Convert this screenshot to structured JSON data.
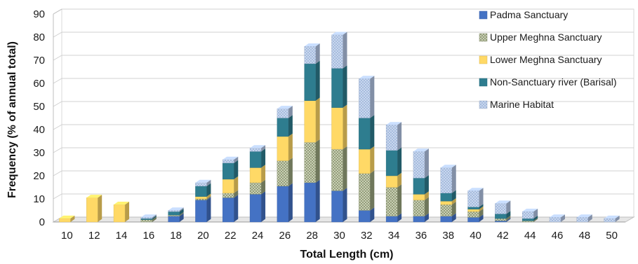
{
  "chart_data": {
    "type": "bar",
    "stacked": true,
    "three_d": true,
    "xlabel": "Total Length (cm)",
    "ylabel": "Frequency (% of annual total)",
    "ylim": [
      0,
      90
    ],
    "yticks": [
      0,
      10,
      20,
      30,
      40,
      50,
      60,
      70,
      80,
      90
    ],
    "grid": true,
    "legend_position": "top-right",
    "categories": [
      "10",
      "12",
      "14",
      "16",
      "18",
      "20",
      "22",
      "24",
      "26",
      "28",
      "30",
      "32",
      "34",
      "36",
      "38",
      "40",
      "42",
      "44",
      "46",
      "48",
      "50"
    ],
    "series": [
      {
        "name": "Padma Sanctuary",
        "color": "#4472C4",
        "pattern": "solid",
        "values": [
          0,
          0,
          0,
          0,
          2.5,
          9.5,
          10.5,
          12,
          15.5,
          17,
          13.5,
          5,
          2.5,
          2.5,
          2.5,
          2,
          0.5,
          0,
          0,
          0,
          0
        ]
      },
      {
        "name": "Upper Meghna Sanctuary",
        "color": "#9AA57E",
        "pattern": "dots",
        "values": [
          0,
          0,
          0,
          1,
          0.5,
          0.5,
          2,
          5,
          11,
          17.5,
          18,
          16,
          12.5,
          7,
          5,
          2.5,
          1,
          0.5,
          0,
          0,
          0
        ]
      },
      {
        "name": "Lower Meghna Sanctuary",
        "color": "#FFD966",
        "pattern": "solid",
        "values": [
          1.5,
          10.5,
          7.5,
          0,
          0,
          1,
          6,
          6.5,
          10.5,
          18,
          18,
          10.5,
          5,
          2.5,
          1.5,
          1,
          0,
          0,
          0,
          0,
          0
        ]
      },
      {
        "name": "Non-Sanctuary river (Barisal)",
        "color": "#2E7D8F",
        "pattern": "solid",
        "values": [
          0,
          0,
          0,
          0.5,
          1.5,
          4.5,
          7,
          7,
          8,
          16,
          17,
          13.5,
          11,
          7,
          3.5,
          1,
          2,
          1,
          0,
          0,
          0
        ]
      },
      {
        "name": "Marine Habitat",
        "color": "#B4C7E7",
        "pattern": "dots",
        "values": [
          0,
          0,
          0,
          0.5,
          0.5,
          1.5,
          1.5,
          1.5,
          4,
          7.5,
          14.5,
          17,
          11,
          11.5,
          11,
          7,
          4.5,
          3,
          2,
          2,
          1.5
        ]
      }
    ]
  }
}
